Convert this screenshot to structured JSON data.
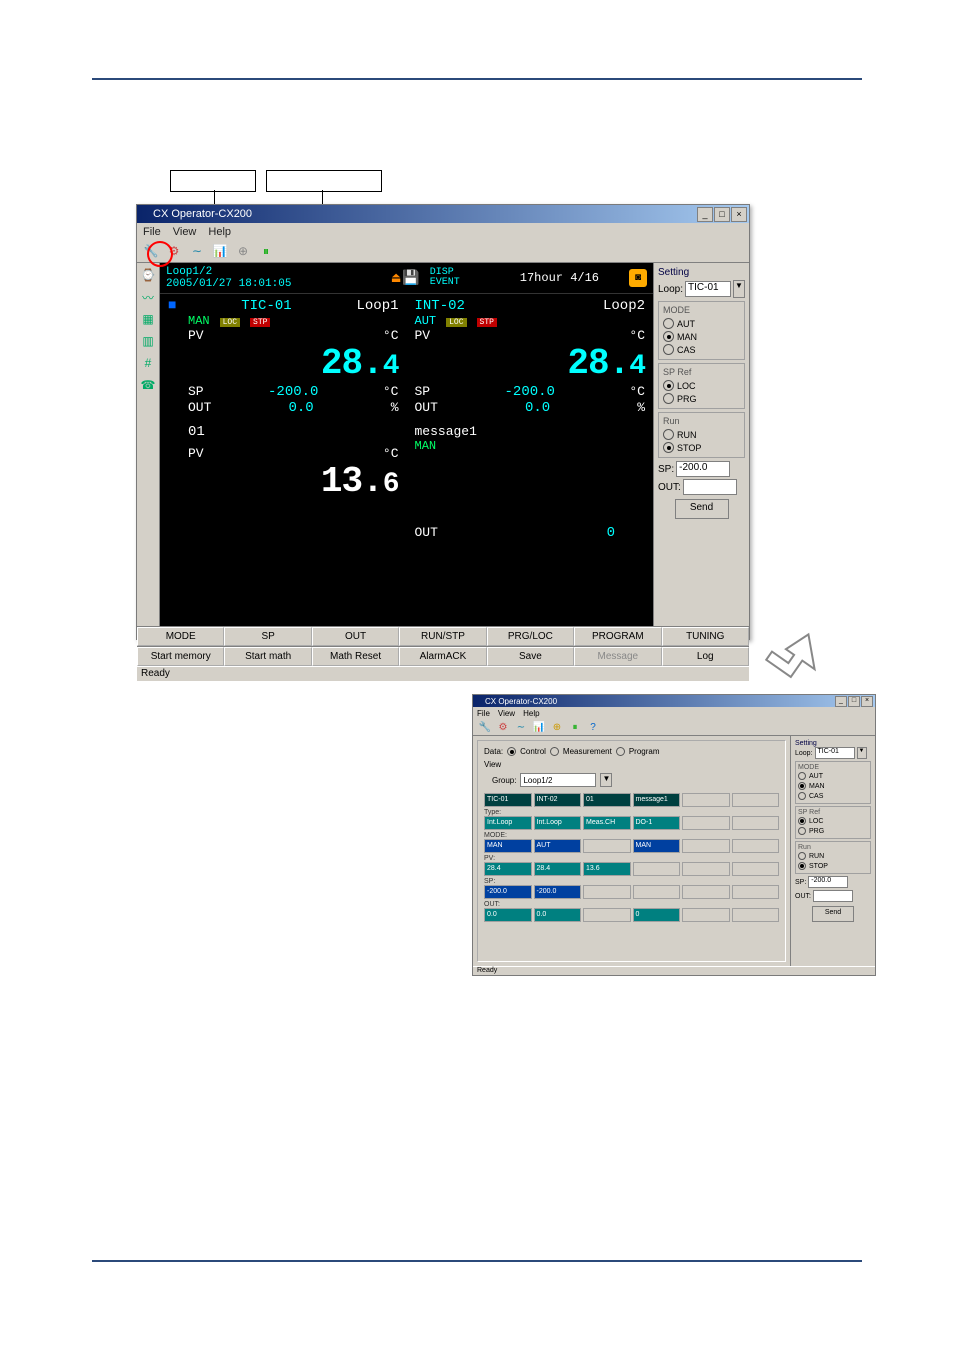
{
  "main_window": {
    "title": "CX Operator-CX200",
    "menu": {
      "file": "File",
      "view": "View",
      "help": "Help"
    },
    "header": {
      "loop_label": "Loop1/2",
      "datetime": "2005/01/27 18:01:05",
      "disp": "DISP",
      "event": "EVENT",
      "time_label": "17hour 4/16"
    },
    "loops": [
      {
        "id": "TIC-01",
        "name": "Loop1",
        "mode": "MAN",
        "loc": "LOC",
        "stp": "STP",
        "pv_label": "PV",
        "pv_value": "28.4",
        "pv_value_1": "28.",
        "pv_value_2": "4",
        "unit": "°C",
        "sp_label": "SP",
        "sp_value": "-200.0",
        "sp_unit": "°C",
        "out_label": "OUT",
        "out_value": "0.0",
        "out_unit": "%"
      },
      {
        "id": "INT-02",
        "name": "Loop2",
        "mode": "AUT",
        "loc": "LOC",
        "stp": "STP",
        "pv_label": "PV",
        "pv_value": "28.4",
        "pv_value_1": "28.",
        "pv_value_2": "4",
        "unit": "°C",
        "sp_label": "SP",
        "sp_value": "-200.0",
        "sp_unit": "°C",
        "out_label": "OUT",
        "out_value": "0.0",
        "out_unit": "%"
      },
      {
        "id": "01",
        "pv_label": "PV",
        "pv_value_1": "13.",
        "pv_value_2": "6",
        "unit": "°C"
      },
      {
        "msg": "message1",
        "mode": "MAN",
        "out_label": "OUT",
        "out_value": "0"
      }
    ],
    "setting": {
      "title": "Setting",
      "loop_label": "Loop:",
      "loop_value": "TIC-01",
      "mode_label": "MODE",
      "mode_options": {
        "aut": "AUT",
        "man": "MAN",
        "cas": "CAS"
      },
      "mode_selected": "MAN",
      "spref_label": "SP Ref",
      "spref_options": {
        "loc": "LOC",
        "prg": "PRG"
      },
      "spref_selected": "LOC",
      "run_label": "Run",
      "run_options": {
        "run": "RUN",
        "stop": "STOP"
      },
      "run_selected": "STOP",
      "sp_label": "SP:",
      "sp_value": "-200.0",
      "out_label": "OUT:",
      "out_value": "",
      "send": "Send"
    },
    "softkeys_row1": [
      "MODE",
      "SP",
      "OUT",
      "RUN/STP",
      "PRG/LOC",
      "PROGRAM",
      "TUNING"
    ],
    "softkeys_row2": [
      "Start memory",
      "Start math",
      "Math Reset",
      "AlarmACK",
      "Save",
      "Message",
      "Log"
    ],
    "status": "Ready"
  },
  "small_window": {
    "title": "CX Operator-CX200",
    "menu": {
      "file": "File",
      "view": "View",
      "help": "Help"
    },
    "data_label": "Data:",
    "radios": {
      "control": "Control",
      "measurement": "Measurement",
      "program": "Program"
    },
    "view_label": "View",
    "group_label": "Group:",
    "group_value": "Loop1/2",
    "table": {
      "headers": [
        "TIC-01",
        "INT-02",
        "01",
        "message1",
        "",
        ""
      ],
      "rows": [
        {
          "label": "Type:",
          "cells": [
            "Int.Loop",
            "Int.Loop",
            "Meas.CH",
            "DO-1",
            "",
            ""
          ],
          "style": [
            "teal",
            "teal",
            "teal",
            "teal",
            "empty",
            "empty"
          ]
        },
        {
          "label": "MODE:",
          "cells": [
            "MAN",
            "AUT",
            "",
            "MAN",
            "",
            ""
          ],
          "style": [
            "blue",
            "blue",
            "empty",
            "blue",
            "empty",
            "empty"
          ]
        },
        {
          "label": "PV:",
          "cells": [
            "28.4",
            "28.4",
            "13.6",
            "",
            "",
            ""
          ],
          "style": [
            "teal",
            "teal",
            "teal",
            "empty",
            "empty",
            "empty"
          ]
        },
        {
          "label": "SP:",
          "cells": [
            "-200.0",
            "-200.0",
            "",
            "",
            "",
            ""
          ],
          "style": [
            "blue",
            "blue",
            "empty",
            "empty",
            "empty",
            "empty"
          ]
        },
        {
          "label": "OUT:",
          "cells": [
            "0.0",
            "0.0",
            "",
            "0",
            "",
            ""
          ],
          "style": [
            "teal",
            "teal",
            "empty",
            "teal",
            "empty",
            "empty"
          ]
        }
      ]
    },
    "setting": {
      "title": "Setting",
      "loop_label": "Loop:",
      "loop_value": "TIC-01",
      "mode_label": "MODE",
      "mode_options": {
        "aut": "AUT",
        "man": "MAN",
        "cas": "CAS"
      },
      "mode_selected": "MAN",
      "spref_label": "SP Ref",
      "spref_options": {
        "loc": "LOC",
        "prg": "PRG"
      },
      "spref_selected": "LOC",
      "run_label": "Run",
      "run_options": {
        "run": "RUN",
        "stop": "STOP"
      },
      "run_selected": "STOP",
      "sp_label": "SP:",
      "sp_value": "-200.0",
      "out_label": "OUT:",
      "out_value": "",
      "send": "Send"
    },
    "status": "Ready"
  }
}
